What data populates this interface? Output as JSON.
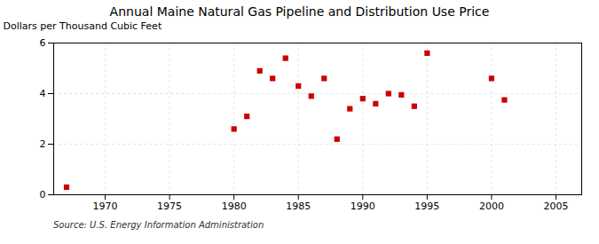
{
  "chart_data": {
    "type": "scatter",
    "title": "Annual Maine Natural Gas Pipeline and Distribution Use Price",
    "ylabel": "Dollars per Thousand Cubic Feet",
    "source": "Source: U.S. Energy Information Administration",
    "x": [
      1967,
      1980,
      1981,
      1982,
      1983,
      1984,
      1985,
      1986,
      1987,
      1988,
      1989,
      1990,
      1991,
      1992,
      1993,
      1994,
      1995,
      2000,
      2001
    ],
    "values": [
      0.3,
      2.6,
      3.1,
      4.9,
      4.6,
      5.4,
      4.3,
      3.9,
      4.6,
      2.2,
      3.4,
      3.8,
      3.6,
      4.0,
      3.95,
      3.5,
      5.6,
      4.6,
      3.75
    ],
    "color": "#cc0000",
    "marker": "square",
    "xlim": [
      1966,
      2007
    ],
    "ylim": [
      0,
      6
    ],
    "xticks": [
      1970,
      1975,
      1980,
      1985,
      1990,
      1995,
      2000,
      2005
    ],
    "yticks": [
      0,
      2,
      4,
      6
    ],
    "grid": true
  }
}
